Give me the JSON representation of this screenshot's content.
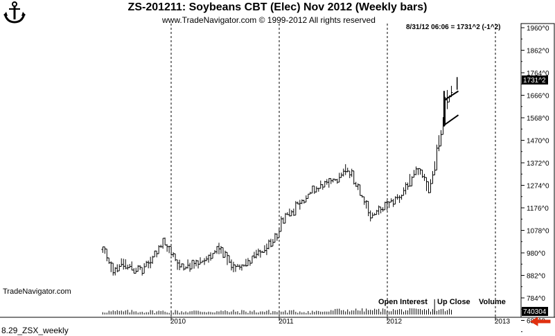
{
  "header": {
    "title": "ZS-201211:  Soybeans CBT (Elec) Nov 2012  (Weekly bars)",
    "copyright": "www.TradeNavigator.com © 1999-2012 All rights reserved",
    "quote": "8/31/12 06:06 = 1731^2 (-1^2)"
  },
  "watermark": "TradeNavigator.com",
  "footer_label": "8.29_ZSX_weekly",
  "lower_panel": {
    "labels": [
      "Open Interest",
      "Up Close",
      "Volume"
    ],
    "value_badge": "740304"
  },
  "chart_data": {
    "type": "bar",
    "subtype": "ohlc-weekly",
    "title": "ZS-201211:  Soybeans CBT (Elec) Nov 2012  (Weekly bars)",
    "y_axis": {
      "position": "right",
      "ylim": [
        588,
        1960
      ],
      "ticks": [
        1960,
        1862,
        1764,
        1666,
        1568,
        1470,
        1372,
        1274,
        1176,
        1078,
        980,
        882,
        784,
        686
      ],
      "tick_labels": [
        "1960^0",
        "1862^0",
        "1764^0",
        "1666^0",
        "1568^0",
        "1470^0",
        "1372^0",
        "1274^0",
        "1176^0",
        "1078^0",
        "980^0",
        "882^0",
        "784^0",
        "686^0"
      ]
    },
    "x_axis": {
      "tick_labels": [
        "2010",
        "2011",
        "2012",
        "2013"
      ],
      "xlim": [
        2009.0,
        2013.0
      ],
      "gridlines": "vertical-dashed-at-year-boundaries"
    },
    "last_price_label": "1731^2",
    "last_price": 1731,
    "anchor_points": [
      [
        2009.38,
        995
      ],
      [
        2009.48,
        905
      ],
      [
        2009.55,
        935
      ],
      [
        2009.75,
        900
      ],
      [
        2009.95,
        1025
      ],
      [
        2010.1,
        920
      ],
      [
        2010.3,
        940
      ],
      [
        2010.45,
        995
      ],
      [
        2010.6,
        915
      ],
      [
        2010.75,
        945
      ],
      [
        2010.95,
        1020
      ],
      [
        2011.05,
        1130
      ],
      [
        2011.2,
        1195
      ],
      [
        2011.35,
        1255
      ],
      [
        2011.5,
        1290
      ],
      [
        2011.65,
        1345
      ],
      [
        2011.75,
        1265
      ],
      [
        2011.85,
        1145
      ],
      [
        2011.95,
        1160
      ],
      [
        2012.05,
        1205
      ],
      [
        2012.15,
        1235
      ],
      [
        2012.3,
        1345
      ],
      [
        2012.4,
        1260
      ],
      [
        2012.5,
        1470
      ],
      [
        2012.55,
        1625
      ],
      [
        2012.62,
        1705
      ]
    ],
    "bar_interval_years": 0.0192,
    "annotations": [
      {
        "type": "trendline",
        "points": [
          [
            2012.55,
            1648
          ],
          [
            2012.67,
            1684
          ]
        ]
      },
      {
        "type": "trendline",
        "points": [
          [
            2012.55,
            1540
          ],
          [
            2012.67,
            1580
          ]
        ]
      },
      {
        "type": "line",
        "points": [
          [
            2012.538,
            1530
          ],
          [
            2012.538,
            1685
          ]
        ]
      }
    ],
    "volume_panel": {
      "series": [
        "Open Interest",
        "Up Close",
        "Volume"
      ],
      "last_value": 740304
    }
  }
}
